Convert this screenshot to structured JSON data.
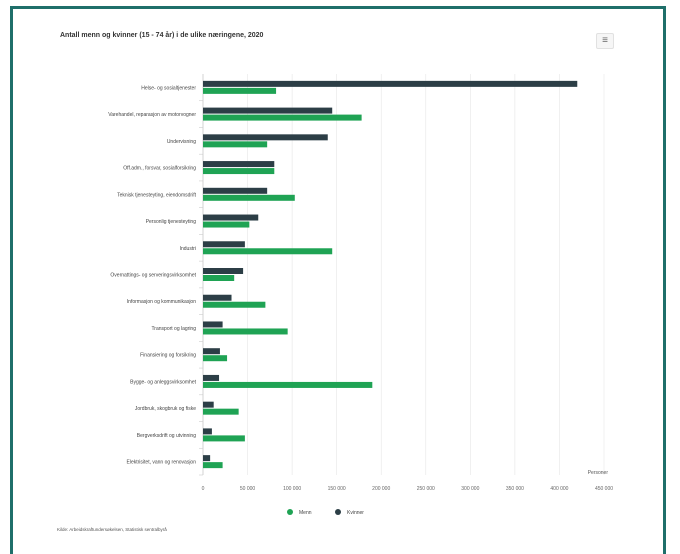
{
  "chart_data": {
    "type": "bar",
    "orientation": "horizontal",
    "title": "Antall menn og kvinner (15 - 74 år) i de ulike næringene, 2020",
    "xlabel": "Personer",
    "categories": [
      "Helse- og sosialtjenester",
      "Varehandel, reparasjon av motorvogner",
      "Undervisning",
      "Off.adm., forsvar, sosialforsikring",
      "Teknisk tjenesteyting, eiendomsdrift",
      "Personlig tjenesteyting",
      "Industri",
      "Overnattings- og serveringsvirksomhet",
      "Informasjon og kommunikasjon",
      "Transport og lagring",
      "Finansiering og forsikring",
      "Bygge- og anleggsvirksomhet",
      "Jordbruk, skogbruk og fiske",
      "Bergverksdrift og utvinning",
      "Elektrisitet, vann og renovasjon"
    ],
    "series": [
      {
        "name": "Menn",
        "color": "#1fa354",
        "values": [
          82000,
          178000,
          72000,
          80000,
          103000,
          52000,
          145000,
          35000,
          70000,
          95000,
          27000,
          190000,
          40000,
          47000,
          22000
        ]
      },
      {
        "name": "Kvinner",
        "color": "#2c3e46",
        "values": [
          420000,
          145000,
          140000,
          80000,
          72000,
          62000,
          47000,
          45000,
          32000,
          22000,
          19000,
          18000,
          12000,
          10000,
          8000
        ]
      }
    ],
    "xlim": [
      0,
      450000
    ],
    "xticks": [
      "0",
      "50 000",
      "100 000",
      "150 000",
      "200 000",
      "250 000",
      "300 000",
      "350 000",
      "400 000",
      "450 000"
    ],
    "grid": true,
    "legend": "bottom"
  },
  "toolbar": {
    "menu_icon": "≡"
  },
  "source": "Kilde: Arbeidskraftundersøkelsen, Statistisk sentralbyrå"
}
